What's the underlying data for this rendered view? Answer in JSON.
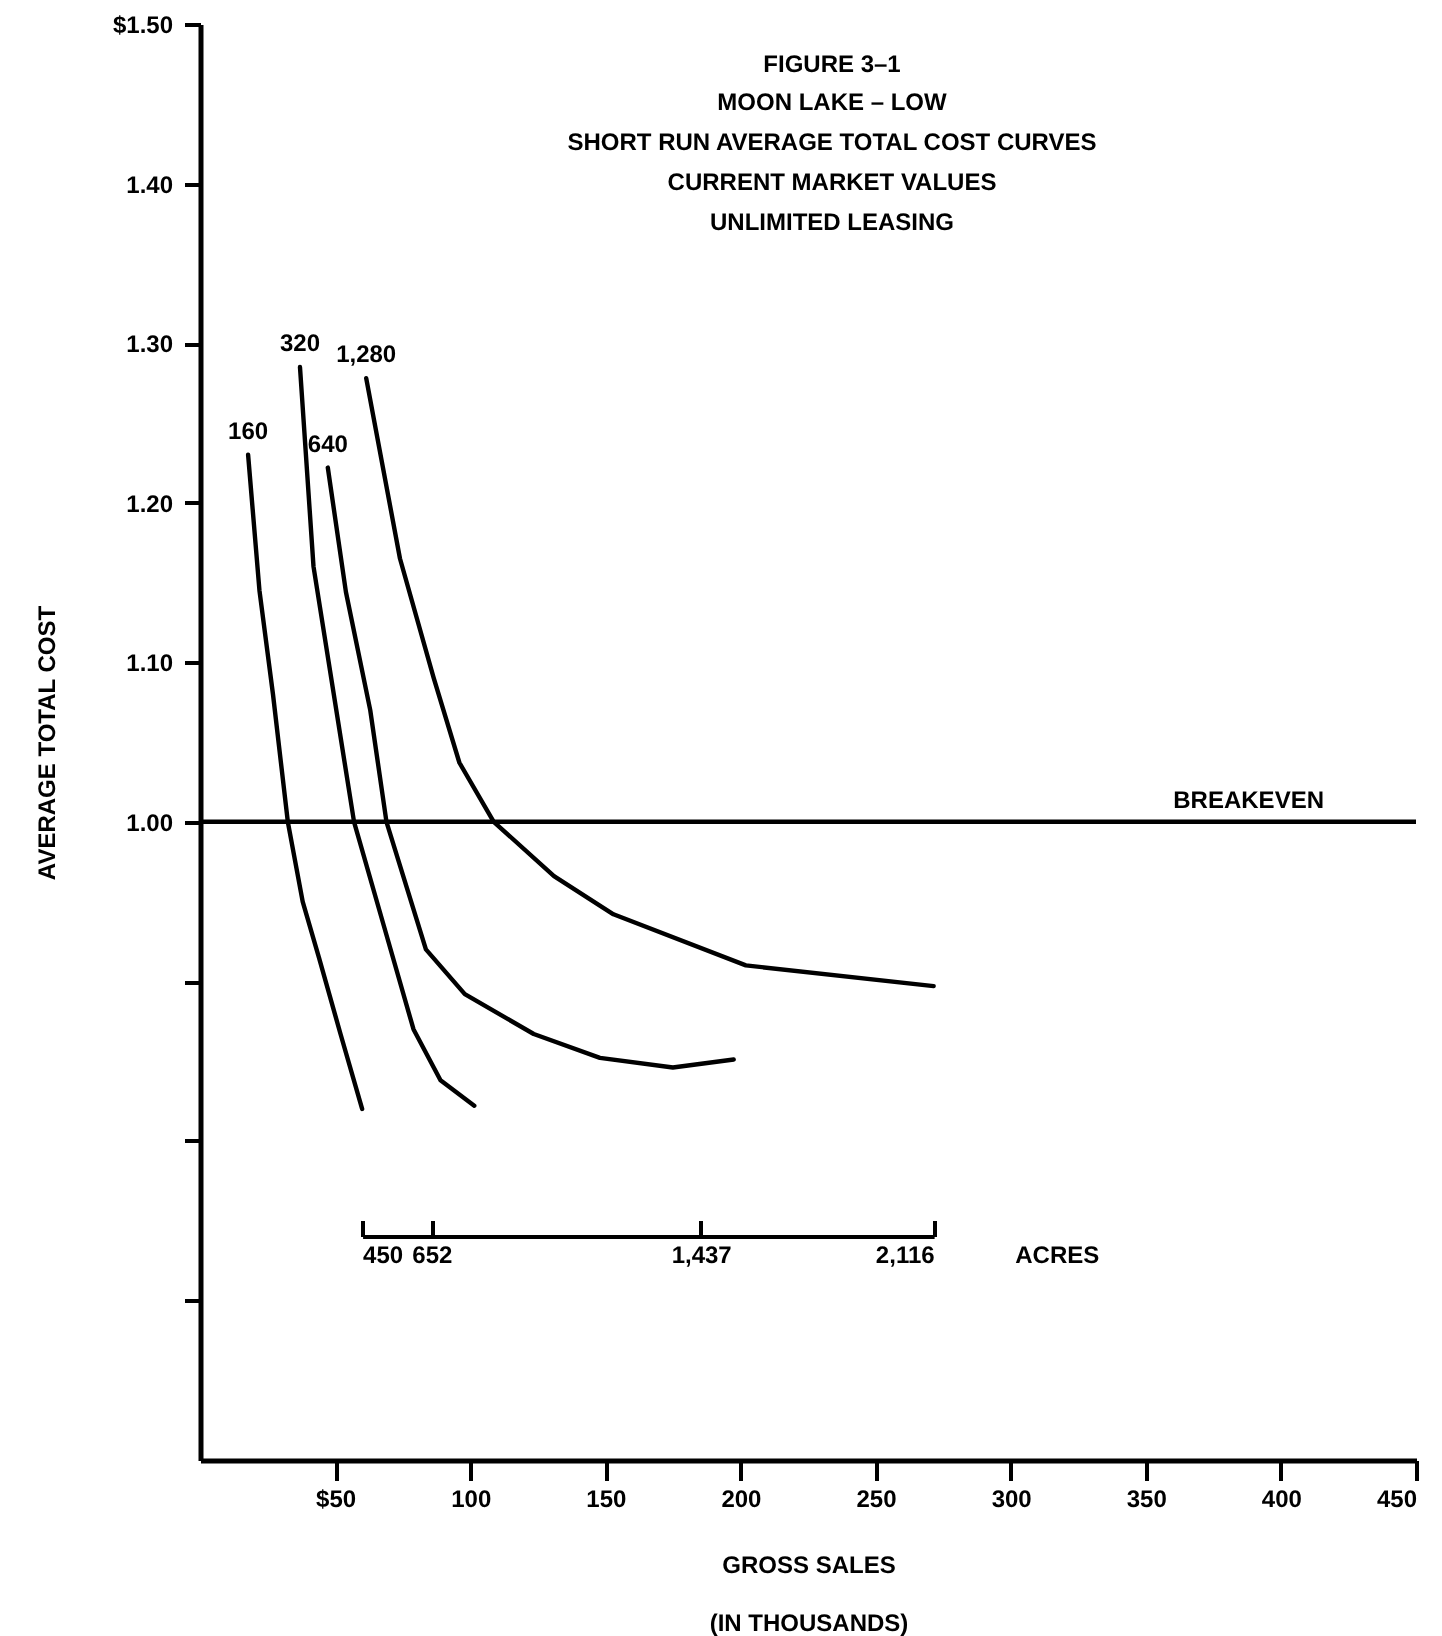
{
  "chart_data": {
    "type": "line",
    "title": "FIGURE 3–1",
    "subtitle": "MOON LAKE – LOW\nSHORT RUN AVERAGE TOTAL COST CURVES\nCURRENT MARKET VALUES\nUNLIMITED LEASING",
    "xlabel": "GROSS SALES\n(IN THOUSANDS)",
    "ylabel": "AVERAGE TOTAL COST",
    "x2label": "ACRES",
    "x2lim": [
      450,
      2116
    ],
    "x2ticks": [
      450,
      652,
      {
        "value": 1437,
        "label": "1,437"
      },
      {
        "value": 2116,
        "label": "2,116"
      }
    ],
    "xlim": [
      0,
      450
    ],
    "xticks": [
      {
        "value": 50,
        "label": "$50"
      },
      100,
      150,
      200,
      250,
      300,
      350,
      400,
      450
    ],
    "ylim": [
      0.6,
      1.5
    ],
    "yticks": [
      {
        "value": 0.7,
        "label": null
      },
      {
        "value": 0.8,
        "label": null
      },
      {
        "value": 0.9,
        "label": null
      },
      {
        "value": 1.0,
        "label": "1.00"
      },
      {
        "value": 1.1,
        "label": "1.10"
      },
      {
        "value": 1.2,
        "label": "1.20"
      },
      {
        "value": 1.3,
        "label": "1.30"
      },
      {
        "value": 1.4,
        "label": "1.40"
      },
      {
        "value": 1.5,
        "label": "$1.50"
      }
    ],
    "series": [
      {
        "name": "160",
        "color": "#000000",
        "x": [
          17.8,
          22,
          27,
          32.5,
          38,
          44,
          52,
          60
        ],
        "values": [
          1.23,
          1.145,
          1.08,
          1.0,
          0.95,
          0.915,
          0.867,
          0.82
        ]
      },
      {
        "name": "320",
        "color": "#000000",
        "x": [
          37,
          42,
          49.5,
          57,
          68,
          79,
          89,
          101.5
        ],
        "values": [
          1.285,
          1.16,
          1.08,
          1.0,
          0.935,
          0.87,
          0.838,
          0.822
        ]
      },
      {
        "name": "640",
        "color": "#000000",
        "x": [
          47.3,
          54,
          63,
          69,
          83.6,
          98,
          123.5,
          148,
          175,
          197.5
        ],
        "values": [
          1.222,
          1.144,
          1.07,
          1.0,
          0.92,
          0.892,
          0.867,
          0.852,
          0.846,
          0.851
        ]
      },
      {
        "name": "1,280",
        "color": "#000000",
        "x": [
          61.5,
          74,
          86.5,
          96,
          108.7,
          131,
          153,
          202,
          271.5
        ],
        "values": [
          1.278,
          1.165,
          1.09,
          1.037,
          1.0,
          0.966,
          0.942,
          0.91,
          0.897
        ]
      }
    ],
    "ref_lines": [
      {
        "axis": "y",
        "value": 1.0,
        "label": "BREAKEVEN",
        "color": "#000000"
      }
    ],
    "marker": "none",
    "line_style": "solid",
    "grid": false,
    "legend": false
  }
}
